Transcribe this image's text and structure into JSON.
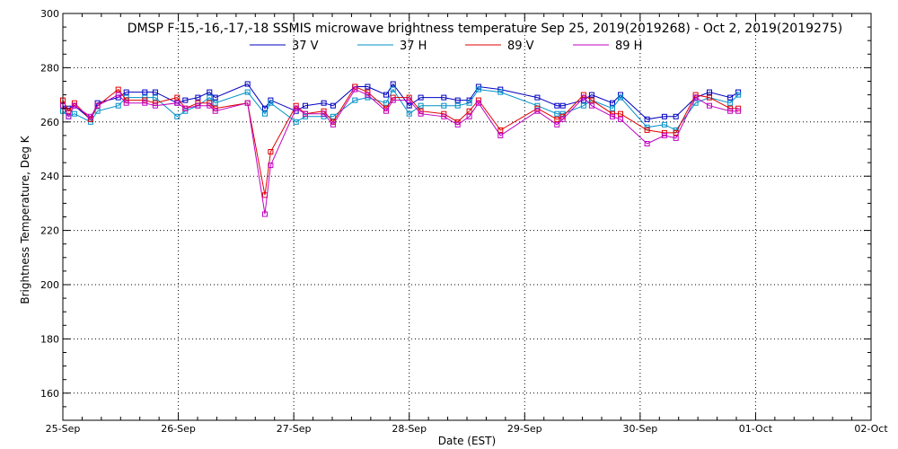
{
  "chart_data": {
    "type": "line",
    "title": "DMSP F-15,-16,-17,-18 SSMIS microwave brightness temperature Sep 25, 2019(2019268) - Oct  2, 2019(2019275)",
    "xlabel": "Date (EST)",
    "ylabel": "Brightness Temperature, Deg K",
    "xlim": [
      0,
      7
    ],
    "ylim": [
      150,
      300
    ],
    "grid": true,
    "legend_position": "top-center",
    "x_ticks": [
      {
        "x": 0,
        "label": "25-Sep"
      },
      {
        "x": 1,
        "label": "26-Sep"
      },
      {
        "x": 2,
        "label": "27-Sep"
      },
      {
        "x": 3,
        "label": "28-Sep"
      },
      {
        "x": 4,
        "label": "29-Sep"
      },
      {
        "x": 5,
        "label": "30-Sep"
      },
      {
        "x": 6,
        "label": "01-Oct"
      },
      {
        "x": 7,
        "label": "02-Oct"
      }
    ],
    "y_ticks": [
      {
        "y": 160,
        "label": "160"
      },
      {
        "y": 180,
        "label": "180"
      },
      {
        "y": 200,
        "label": "200"
      },
      {
        "y": 220,
        "label": "220"
      },
      {
        "y": 240,
        "label": "240"
      },
      {
        "y": 260,
        "label": "260"
      },
      {
        "y": 280,
        "label": "280"
      },
      {
        "y": 300,
        "label": "300"
      }
    ],
    "series": [
      {
        "name": "37 V",
        "color": "#0000c0",
        "points": [
          [
            0.0,
            266
          ],
          [
            0.05,
            265
          ],
          [
            0.1,
            266
          ],
          [
            0.24,
            261
          ],
          [
            0.3,
            267
          ],
          [
            0.48,
            269
          ],
          [
            0.55,
            271
          ],
          [
            0.71,
            271
          ],
          [
            0.8,
            271
          ],
          [
            0.99,
            267
          ],
          [
            1.06,
            268
          ],
          [
            1.17,
            269
          ],
          [
            1.27,
            271
          ],
          [
            1.32,
            269
          ],
          [
            1.6,
            274
          ],
          [
            1.75,
            265
          ],
          [
            1.8,
            268
          ],
          [
            2.02,
            264
          ],
          [
            2.1,
            266
          ],
          [
            2.26,
            267
          ],
          [
            2.34,
            266
          ],
          [
            2.53,
            273
          ],
          [
            2.64,
            273
          ],
          [
            2.8,
            270
          ],
          [
            2.86,
            274
          ],
          [
            3.0,
            266
          ],
          [
            3.1,
            269
          ],
          [
            3.3,
            269
          ],
          [
            3.42,
            268
          ],
          [
            3.52,
            268
          ],
          [
            3.6,
            273
          ],
          [
            3.79,
            272
          ],
          [
            4.11,
            269
          ],
          [
            4.28,
            266
          ],
          [
            4.33,
            266
          ],
          [
            4.51,
            268
          ],
          [
            4.58,
            270
          ],
          [
            4.76,
            267
          ],
          [
            4.83,
            270
          ],
          [
            5.06,
            261
          ],
          [
            5.21,
            262
          ],
          [
            5.31,
            262
          ],
          [
            5.48,
            269
          ],
          [
            5.6,
            271
          ],
          [
            5.78,
            269
          ],
          [
            5.85,
            271
          ]
        ]
      },
      {
        "name": "37 H",
        "color": "#0090c8",
        "points": [
          [
            0.0,
            264
          ],
          [
            0.05,
            262
          ],
          [
            0.1,
            263
          ],
          [
            0.24,
            260
          ],
          [
            0.3,
            264
          ],
          [
            0.48,
            266
          ],
          [
            0.55,
            269
          ],
          [
            0.71,
            269
          ],
          [
            0.8,
            269
          ],
          [
            0.99,
            262
          ],
          [
            1.06,
            264
          ],
          [
            1.17,
            266
          ],
          [
            1.27,
            269
          ],
          [
            1.32,
            267
          ],
          [
            1.6,
            271
          ],
          [
            1.75,
            263
          ],
          [
            1.8,
            267
          ],
          [
            2.02,
            260
          ],
          [
            2.1,
            262
          ],
          [
            2.26,
            262
          ],
          [
            2.34,
            262
          ],
          [
            2.53,
            268
          ],
          [
            2.64,
            269
          ],
          [
            2.8,
            267
          ],
          [
            2.86,
            272
          ],
          [
            3.0,
            263
          ],
          [
            3.1,
            266
          ],
          [
            3.3,
            266
          ],
          [
            3.42,
            266
          ],
          [
            3.52,
            267
          ],
          [
            3.6,
            272
          ],
          [
            3.79,
            271
          ],
          [
            4.11,
            266
          ],
          [
            4.28,
            263
          ],
          [
            4.33,
            263
          ],
          [
            4.51,
            266
          ],
          [
            4.58,
            268
          ],
          [
            4.76,
            265
          ],
          [
            4.83,
            269
          ],
          [
            5.06,
            258
          ],
          [
            5.21,
            259
          ],
          [
            5.31,
            257
          ],
          [
            5.48,
            267
          ],
          [
            5.6,
            269
          ],
          [
            5.78,
            267
          ],
          [
            5.85,
            270
          ]
        ]
      },
      {
        "name": "89 V",
        "color": "#e00000",
        "points": [
          [
            0.0,
            268
          ],
          [
            0.05,
            264
          ],
          [
            0.1,
            267
          ],
          [
            0.24,
            261
          ],
          [
            0.3,
            266
          ],
          [
            0.48,
            272
          ],
          [
            0.55,
            268
          ],
          [
            0.71,
            268
          ],
          [
            0.8,
            267
          ],
          [
            0.99,
            269
          ],
          [
            1.06,
            265
          ],
          [
            1.17,
            267
          ],
          [
            1.27,
            267
          ],
          [
            1.32,
            265
          ],
          [
            1.6,
            267
          ],
          [
            1.75,
            233
          ],
          [
            1.8,
            249
          ],
          [
            2.02,
            266
          ],
          [
            2.1,
            263
          ],
          [
            2.26,
            264
          ],
          [
            2.34,
            260
          ],
          [
            2.53,
            273
          ],
          [
            2.64,
            271
          ],
          [
            2.8,
            265
          ],
          [
            2.86,
            269
          ],
          [
            3.0,
            269
          ],
          [
            3.1,
            264
          ],
          [
            3.3,
            263
          ],
          [
            3.42,
            260
          ],
          [
            3.52,
            264
          ],
          [
            3.6,
            268
          ],
          [
            3.79,
            257
          ],
          [
            4.11,
            265
          ],
          [
            4.28,
            261
          ],
          [
            4.33,
            262
          ],
          [
            4.51,
            270
          ],
          [
            4.58,
            268
          ],
          [
            4.76,
            263
          ],
          [
            4.83,
            263
          ],
          [
            5.06,
            257
          ],
          [
            5.21,
            256
          ],
          [
            5.31,
            256
          ],
          [
            5.48,
            270
          ],
          [
            5.6,
            269
          ],
          [
            5.78,
            265
          ],
          [
            5.85,
            265
          ]
        ]
      },
      {
        "name": "89 H",
        "color": "#c000c0",
        "points": [
          [
            0.0,
            266
          ],
          [
            0.05,
            262
          ],
          [
            0.1,
            266
          ],
          [
            0.24,
            262
          ],
          [
            0.3,
            266
          ],
          [
            0.48,
            270
          ],
          [
            0.55,
            267
          ],
          [
            0.71,
            267
          ],
          [
            0.8,
            266
          ],
          [
            0.99,
            267
          ],
          [
            1.06,
            265
          ],
          [
            1.17,
            266
          ],
          [
            1.27,
            266
          ],
          [
            1.32,
            264
          ],
          [
            1.6,
            267
          ],
          [
            1.75,
            226
          ],
          [
            1.8,
            244
          ],
          [
            2.02,
            265
          ],
          [
            2.1,
            263
          ],
          [
            2.26,
            263
          ],
          [
            2.34,
            259
          ],
          [
            2.53,
            272
          ],
          [
            2.64,
            270
          ],
          [
            2.8,
            264
          ],
          [
            2.86,
            268
          ],
          [
            3.0,
            268
          ],
          [
            3.1,
            263
          ],
          [
            3.3,
            262
          ],
          [
            3.42,
            259
          ],
          [
            3.52,
            262
          ],
          [
            3.6,
            267
          ],
          [
            3.79,
            255
          ],
          [
            4.11,
            264
          ],
          [
            4.28,
            259
          ],
          [
            4.33,
            261
          ],
          [
            4.51,
            269
          ],
          [
            4.58,
            266
          ],
          [
            4.76,
            262
          ],
          [
            4.83,
            261
          ],
          [
            5.06,
            252
          ],
          [
            5.21,
            255
          ],
          [
            5.31,
            254
          ],
          [
            5.48,
            269
          ],
          [
            5.6,
            266
          ],
          [
            5.78,
            264
          ],
          [
            5.85,
            264
          ]
        ]
      }
    ]
  }
}
